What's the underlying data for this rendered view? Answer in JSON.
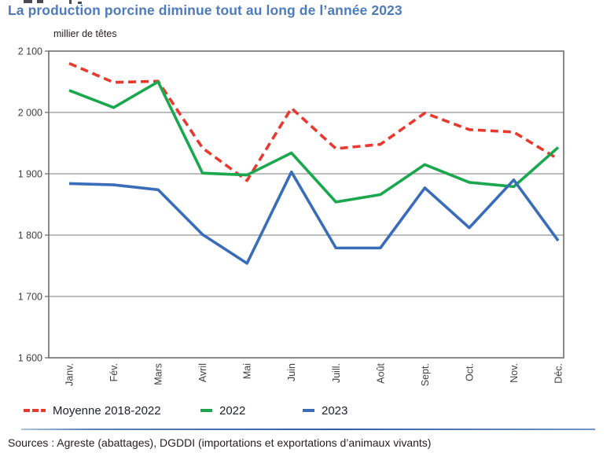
{
  "page": {
    "title": "La production porcine diminue tout au long de l’année 2023",
    "sources": "Sources : Agreste (abattages), DGDDI (importations et exportations d’animaux vivants)"
  },
  "chart_data": {
    "type": "line",
    "title": "La production porcine diminue tout au long de l’année 2023",
    "ylabel": "millier de têtes",
    "xlabel": "",
    "categories": [
      "Janv.",
      "Fév.",
      "Mars",
      "Avril",
      "Mai",
      "Juin",
      "Juill.",
      "Août",
      "Sept.",
      "Oct.",
      "Nov.",
      "Déc."
    ],
    "ylim": [
      1600,
      2100
    ],
    "ytick_step": 100,
    "grid": true,
    "legend_position": "bottom",
    "series": [
      {
        "name": "Moyenne 2018-2022",
        "color": "#e8392f",
        "style": "dashed",
        "values": [
          2080,
          2049,
          2051,
          1942,
          1889,
          2007,
          1941,
          1948,
          1999,
          1972,
          1968,
          1924
        ]
      },
      {
        "name": "2022",
        "color": "#1aa74e",
        "style": "solid",
        "values": [
          2036,
          2008,
          2050,
          1901,
          1898,
          1934,
          1854,
          1866,
          1915,
          1886,
          1879,
          1943
        ]
      },
      {
        "name": "2023",
        "color": "#3a6db8",
        "style": "solid",
        "values": [
          1884,
          1882,
          1874,
          1801,
          1754,
          1903,
          1779,
          1779,
          1877,
          1812,
          1890,
          1791
        ]
      }
    ]
  },
  "colors": {
    "title_text": "#4e7cbb",
    "axis_text": "#414042",
    "plot_border": "#6d6e71",
    "gridline": "#939598",
    "legend_text": "#1d1d30",
    "divider": "#2f5da8",
    "body_text": "#231f20"
  }
}
